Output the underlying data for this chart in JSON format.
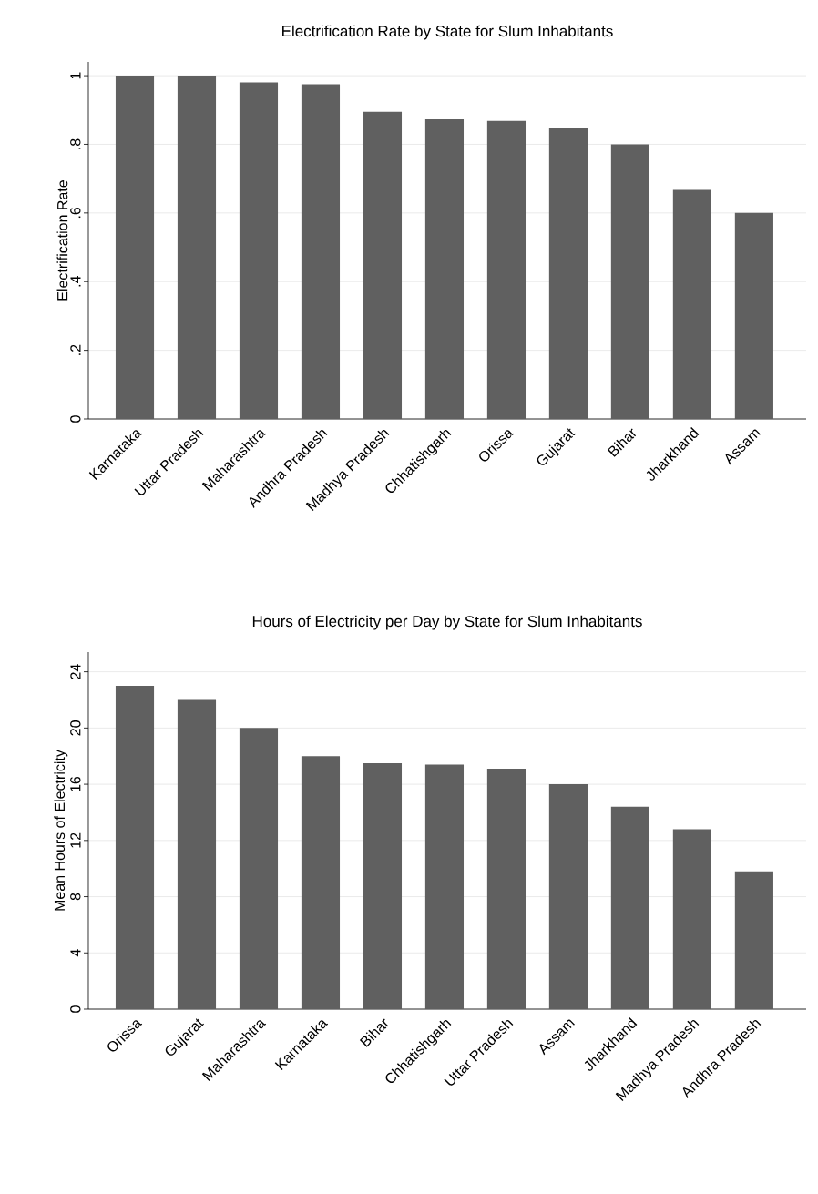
{
  "chart_data": [
    {
      "type": "bar",
      "title": "Electrification Rate by State for Slum Inhabitants",
      "ylabel": "Electrification Rate",
      "categories": [
        "Karnataka",
        "Uttar Pradesh",
        "Maharashtra",
        "Andhra Pradesh",
        "Madhya Pradesh",
        "Chhatishgarh",
        "Orissa",
        "Gujarat",
        "Bihar",
        "Jharkhand",
        "Assam"
      ],
      "values": [
        1.0,
        1.0,
        0.98,
        0.975,
        0.895,
        0.873,
        0.868,
        0.847,
        0.8,
        0.667,
        0.6
      ],
      "color": "#606060",
      "ylim": [
        0,
        1.04
      ],
      "yticks": [
        0,
        {
          "value": 0.2,
          "label": ".2"
        },
        {
          "value": 0.4,
          "label": ".4"
        },
        {
          "value": 0.6,
          "label": ".6"
        },
        {
          "value": 0.8,
          "label": ".8"
        },
        1
      ],
      "grid": "y"
    },
    {
      "type": "bar",
      "title": "Hours of Electricity per Day by State for Slum Inhabitants",
      "ylabel": "Mean Hours of Electricity",
      "categories": [
        "Orissa",
        "Gujarat",
        "Maharashtra",
        "Karnataka",
        "Bihar",
        "Chhatishgarh",
        "Uttar Pradesh",
        "Assam",
        "Jharkhand",
        "Madhya Pradesh",
        "Andhra Pradesh"
      ],
      "values": [
        23.0,
        22.0,
        20.0,
        18.0,
        17.5,
        17.4,
        17.1,
        16.0,
        14.4,
        12.8,
        9.8
      ],
      "color": "#606060",
      "ylim": [
        0,
        25.4
      ],
      "yticks": [
        0,
        4,
        8,
        12,
        16,
        20,
        24
      ],
      "grid": "y"
    }
  ]
}
